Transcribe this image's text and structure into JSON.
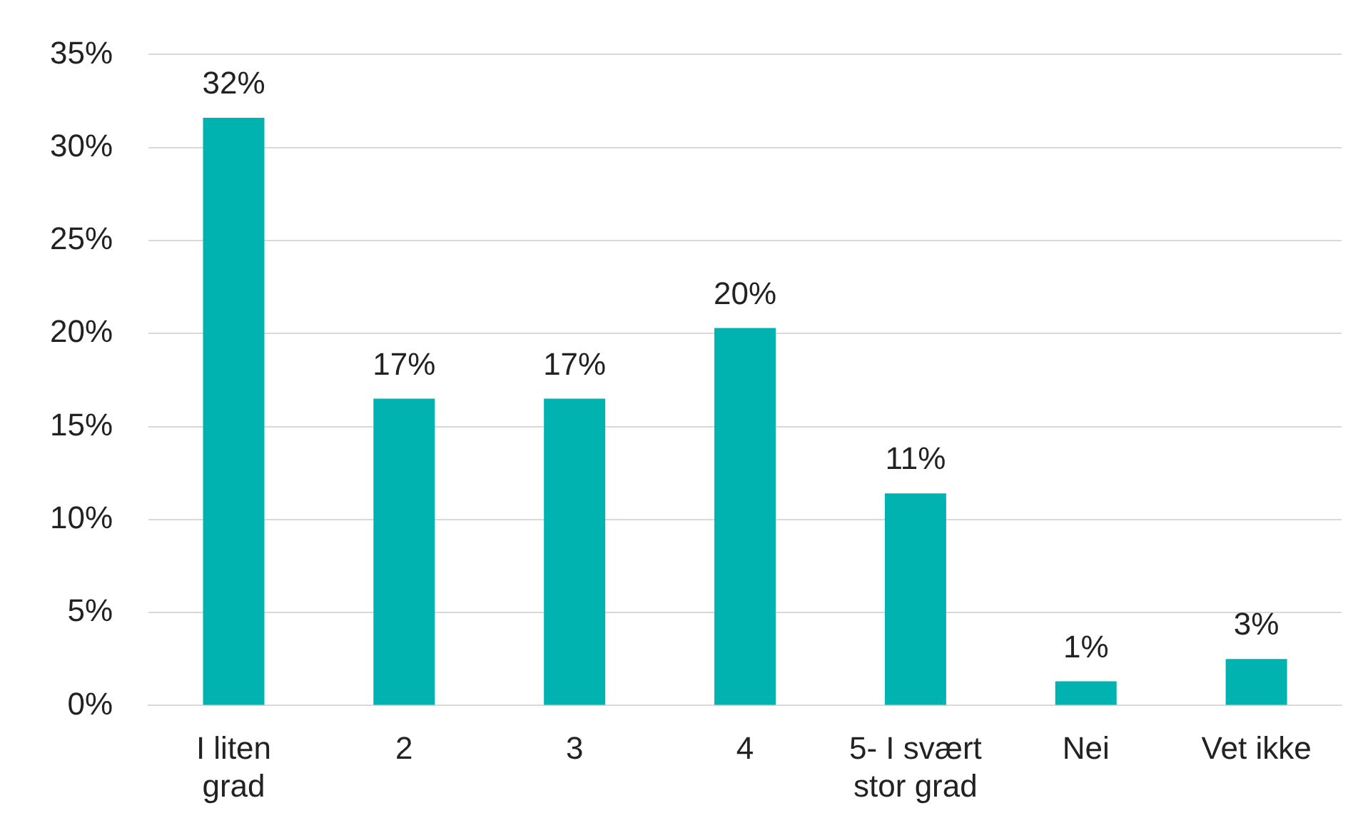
{
  "chart_data": {
    "type": "bar",
    "categories": [
      "I liten grad",
      "2",
      "3",
      "4",
      "5- I svært stor grad",
      "Nei",
      "Vet ikke"
    ],
    "values": [
      31.6,
      16.5,
      16.5,
      20.3,
      11.4,
      1.3,
      2.5
    ],
    "value_labels": [
      "32%",
      "17%",
      "17%",
      "20%",
      "11%",
      "1%",
      "3%"
    ],
    "color": "#00b2b0",
    "ylim": [
      0,
      35
    ],
    "yticks": [
      {
        "value": 0,
        "label": "0%"
      },
      {
        "value": 5,
        "label": "5%"
      },
      {
        "value": 10,
        "label": "10%"
      },
      {
        "value": 15,
        "label": "15%"
      },
      {
        "value": 20,
        "label": "20%"
      },
      {
        "value": 25,
        "label": "25%"
      },
      {
        "value": 30,
        "label": "30%"
      },
      {
        "value": 35,
        "label": "35%"
      }
    ],
    "grid": "y",
    "legend": false
  }
}
